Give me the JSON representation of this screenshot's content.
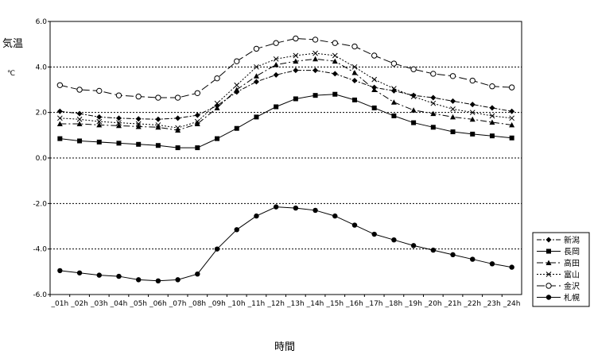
{
  "chart_data": {
    "type": "line",
    "ylabel_top": "気温",
    "ylabel_unit": "℃",
    "xlabel": "時間",
    "ylim": [
      -6.0,
      6.0
    ],
    "yticks": [
      "6.0",
      "4.0",
      "2.0",
      "0.0",
      "-2.0",
      "-4.0",
      "-6.0"
    ],
    "ytick_values": [
      6,
      4,
      2,
      0,
      -2,
      -4,
      -6
    ],
    "grid": "horizontal dotted",
    "legend_position": "right",
    "categories": [
      "_01h",
      "_02h",
      "_03h",
      "_04h",
      "_05h",
      "_06h",
      "_07h",
      "_08h",
      "_09h",
      "_10h",
      "_11h",
      "_12h",
      "_13h",
      "_14h",
      "_15h",
      "_16h",
      "_17h",
      "_18h",
      "_19h",
      "_20h",
      "_21h",
      "_22h",
      "_23h",
      "_24h"
    ],
    "series": [
      {
        "name": "新潟",
        "color": "#000000",
        "dash": "6,2,2,2",
        "marker": "diamond",
        "values": [
          2.05,
          1.95,
          1.8,
          1.75,
          1.72,
          1.7,
          1.75,
          1.88,
          2.3,
          2.9,
          3.35,
          3.65,
          3.85,
          3.85,
          3.7,
          3.4,
          3.1,
          2.95,
          2.75,
          2.65,
          2.5,
          2.35,
          2.2,
          2.05
        ]
      },
      {
        "name": "長岡",
        "color": "#000000",
        "dash": "",
        "marker": "square",
        "values": [
          0.85,
          0.75,
          0.7,
          0.65,
          0.6,
          0.55,
          0.45,
          0.45,
          0.85,
          1.3,
          1.8,
          2.25,
          2.6,
          2.75,
          2.8,
          2.55,
          2.2,
          1.85,
          1.55,
          1.35,
          1.15,
          1.05,
          0.97,
          0.88
        ]
      },
      {
        "name": "高田",
        "color": "#000000",
        "dash": "8,3,2,3",
        "marker": "triangle",
        "values": [
          1.5,
          1.5,
          1.45,
          1.42,
          1.38,
          1.35,
          1.22,
          1.5,
          2.2,
          3.0,
          3.6,
          4.1,
          4.25,
          4.35,
          4.25,
          3.75,
          3.0,
          2.45,
          2.1,
          1.95,
          1.8,
          1.7,
          1.57,
          1.45
        ]
      },
      {
        "name": "富山",
        "color": "#000000",
        "dash": "2,2",
        "marker": "x",
        "values": [
          1.75,
          1.7,
          1.6,
          1.55,
          1.5,
          1.45,
          1.32,
          1.6,
          2.4,
          3.2,
          4.0,
          4.35,
          4.5,
          4.6,
          4.5,
          4.0,
          3.45,
          3.05,
          2.7,
          2.4,
          2.15,
          2.0,
          1.85,
          1.75
        ]
      },
      {
        "name": "金沢",
        "color": "#000000",
        "dash": "10,4",
        "marker": "circle-open",
        "values": [
          3.2,
          3.0,
          2.95,
          2.75,
          2.7,
          2.65,
          2.65,
          2.85,
          3.5,
          4.25,
          4.8,
          5.05,
          5.25,
          5.2,
          5.05,
          4.9,
          4.5,
          4.15,
          3.9,
          3.7,
          3.6,
          3.4,
          3.15,
          3.1
        ]
      },
      {
        "name": "札幌",
        "color": "#000000",
        "dash": "",
        "marker": "circle",
        "values": [
          -4.95,
          -5.05,
          -5.15,
          -5.2,
          -5.35,
          -5.4,
          -5.35,
          -5.1,
          -4.0,
          -3.15,
          -2.55,
          -2.15,
          -2.2,
          -2.3,
          -2.55,
          -2.95,
          -3.35,
          -3.6,
          -3.85,
          -4.05,
          -4.25,
          -4.45,
          -4.65,
          -4.8
        ]
      }
    ]
  }
}
